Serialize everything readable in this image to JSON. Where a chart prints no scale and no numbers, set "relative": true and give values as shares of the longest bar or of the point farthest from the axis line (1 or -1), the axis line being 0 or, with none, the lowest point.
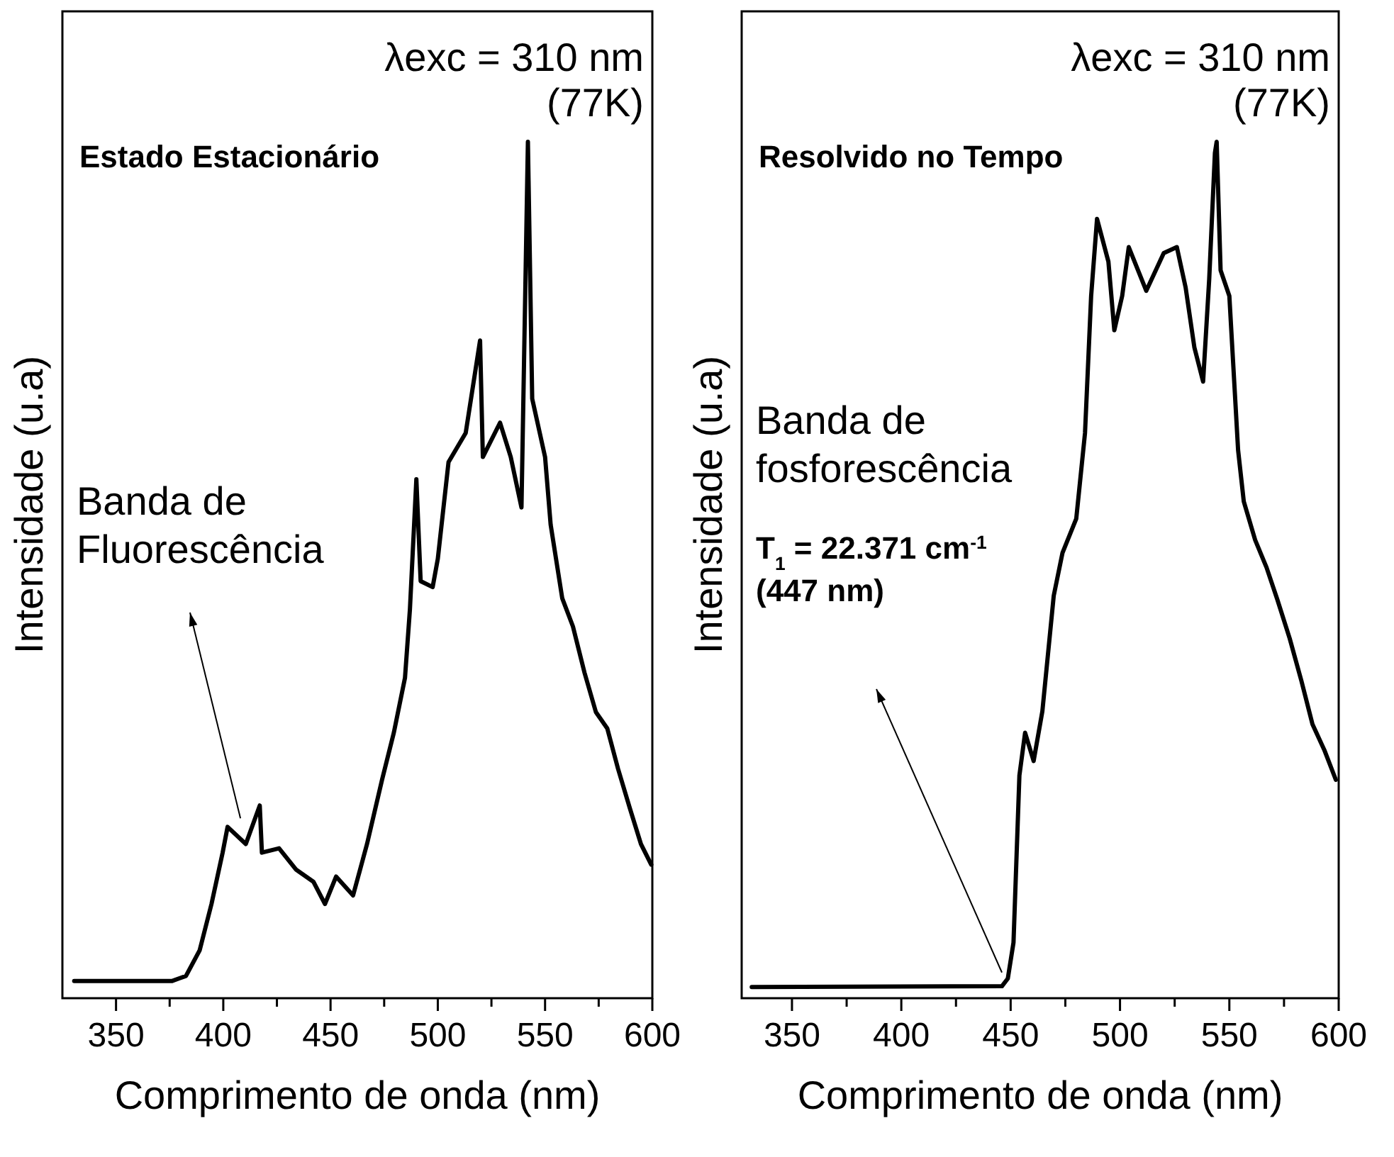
{
  "chart_data": [
    {
      "type": "line",
      "title": "Estado Estacionário",
      "xlabel": "Comprimento de onda (nm)",
      "ylabel": "Intensidade (u.a)",
      "relative": true,
      "color": "#000000",
      "xlim": [
        325,
        600
      ],
      "xticks": [
        350,
        {
          "value": 375,
          "label": null
        },
        400,
        {
          "value": 425,
          "label": null
        },
        450,
        {
          "value": 475,
          "label": null
        },
        500,
        {
          "value": 525,
          "label": null
        },
        550,
        {
          "value": 575,
          "label": null
        },
        600
      ],
      "x": [
        330.5,
        376,
        382.6,
        389,
        394.5,
        399.7,
        402,
        410.5,
        417,
        418,
        426,
        434,
        442,
        447.4,
        452.6,
        460.5,
        467,
        474,
        479.5,
        484.7,
        487,
        490,
        492,
        497.6,
        500,
        505,
        513,
        519.7,
        521,
        529,
        534,
        539,
        542,
        544,
        550,
        552.6,
        558,
        563,
        568.4,
        573.7,
        579,
        584,
        589.5,
        594.7,
        599.5
      ],
      "values": [
        0.02,
        0.02,
        0.026,
        0.056,
        0.11,
        0.17,
        0.2,
        0.18,
        0.225,
        0.17,
        0.175,
        0.15,
        0.136,
        0.11,
        0.142,
        0.12,
        0.18,
        0.255,
        0.31,
        0.374,
        0.454,
        0.606,
        0.487,
        0.48,
        0.513,
        0.626,
        0.66,
        0.768,
        0.632,
        0.672,
        0.632,
        0.573,
        1.0,
        0.7,
        0.632,
        0.553,
        0.467,
        0.434,
        0.38,
        0.334,
        0.315,
        0.268,
        0.222,
        0.18,
        0.156
      ],
      "annotations": [
        "λexc = 310 nm\n(77K)",
        "Banda de\nFluorescência"
      ]
    },
    {
      "type": "line",
      "title": "Resolvido no Tempo",
      "xlabel": "Comprimento de onda (nm)",
      "ylabel": "Intensidade (u.a)",
      "relative": true,
      "color": "#000000",
      "xlim": [
        327,
        600
      ],
      "xticks": [
        350,
        {
          "value": 375,
          "label": null
        },
        400,
        {
          "value": 425,
          "label": null
        },
        450,
        {
          "value": 475,
          "label": null
        },
        500,
        {
          "value": 525,
          "label": null
        },
        550,
        {
          "value": 575,
          "label": null
        },
        600
      ],
      "x": [
        331.6,
        446,
        448.7,
        451.3,
        454,
        456.6,
        460.5,
        464.5,
        469.7,
        473.7,
        480,
        484,
        486.8,
        489.5,
        494.7,
        497.4,
        501,
        504,
        512,
        520,
        526,
        530,
        534,
        538,
        540.8,
        543.4,
        544.2,
        546,
        550,
        554,
        556.6,
        561.8,
        567,
        572,
        577.6,
        583,
        588,
        593.4,
        598.7
      ],
      "values": [
        0.013,
        0.014,
        0.023,
        0.065,
        0.26,
        0.31,
        0.277,
        0.335,
        0.47,
        0.52,
        0.56,
        0.66,
        0.82,
        0.91,
        0.86,
        0.78,
        0.82,
        0.877,
        0.826,
        0.87,
        0.877,
        0.83,
        0.76,
        0.72,
        0.84,
        0.987,
        1.0,
        0.85,
        0.82,
        0.64,
        0.58,
        0.535,
        0.503,
        0.465,
        0.42,
        0.37,
        0.32,
        0.29,
        0.255
      ],
      "annotations": [
        "λexc = 310 nm\n(77K)",
        "Banda de\nfosforescência",
        "T$_{1}$ = 22.371 cm$^{-1}$\n(447 nm)"
      ]
    }
  ]
}
